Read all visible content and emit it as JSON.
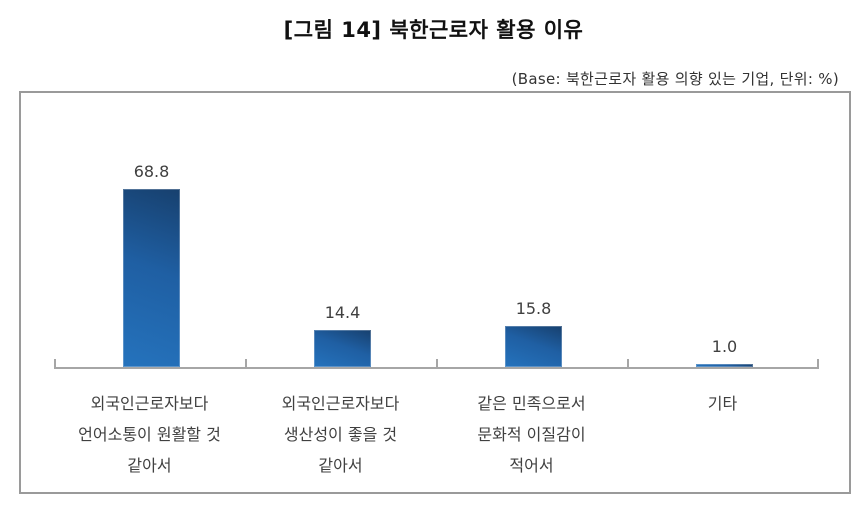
{
  "header": {
    "title": "[그림 14] 북한근로자 활용 이유",
    "subtitle": "(Base: 북한근로자 활용 의향 있는 기업, 단위: %)"
  },
  "colors": {
    "bar_dark": "#17406e",
    "bar_light": "#2573bd",
    "axis": "#a6a6a6",
    "frame": "#9a9a9a",
    "text": "#404040"
  },
  "chart_data": {
    "type": "bar",
    "title": "[그림 14] 북한근로자 활용 이유",
    "subtitle": "(Base: 북한근로자 활용 의향 있는 기업, 단위: %)",
    "categories": [
      "외국인근로자보다 언어소통이 원활할 것 같아서",
      "외국인근로자보다 생산성이 좋을 것 같아서",
      "같은 민족으로서 문화적 이질감이 적어서",
      "기타"
    ],
    "category_lines": [
      [
        "외국인근로자보다",
        "언어소통이  원활할 것",
        "같아서"
      ],
      [
        "외국인근로자보다",
        "생산성이 좋을 것",
        "같아서"
      ],
      [
        "같은 민족으로서",
        "문화적 이질감이",
        "적어서"
      ],
      [
        "기타"
      ]
    ],
    "values": [
      68.8,
      14.4,
      15.8,
      1.0
    ],
    "value_labels": [
      "68.8",
      "14.4",
      "15.8",
      "1.0"
    ],
    "xlabel": "",
    "ylabel": "",
    "unit": "%",
    "ylim": [
      0,
      75
    ],
    "grid": false,
    "legend": null
  }
}
